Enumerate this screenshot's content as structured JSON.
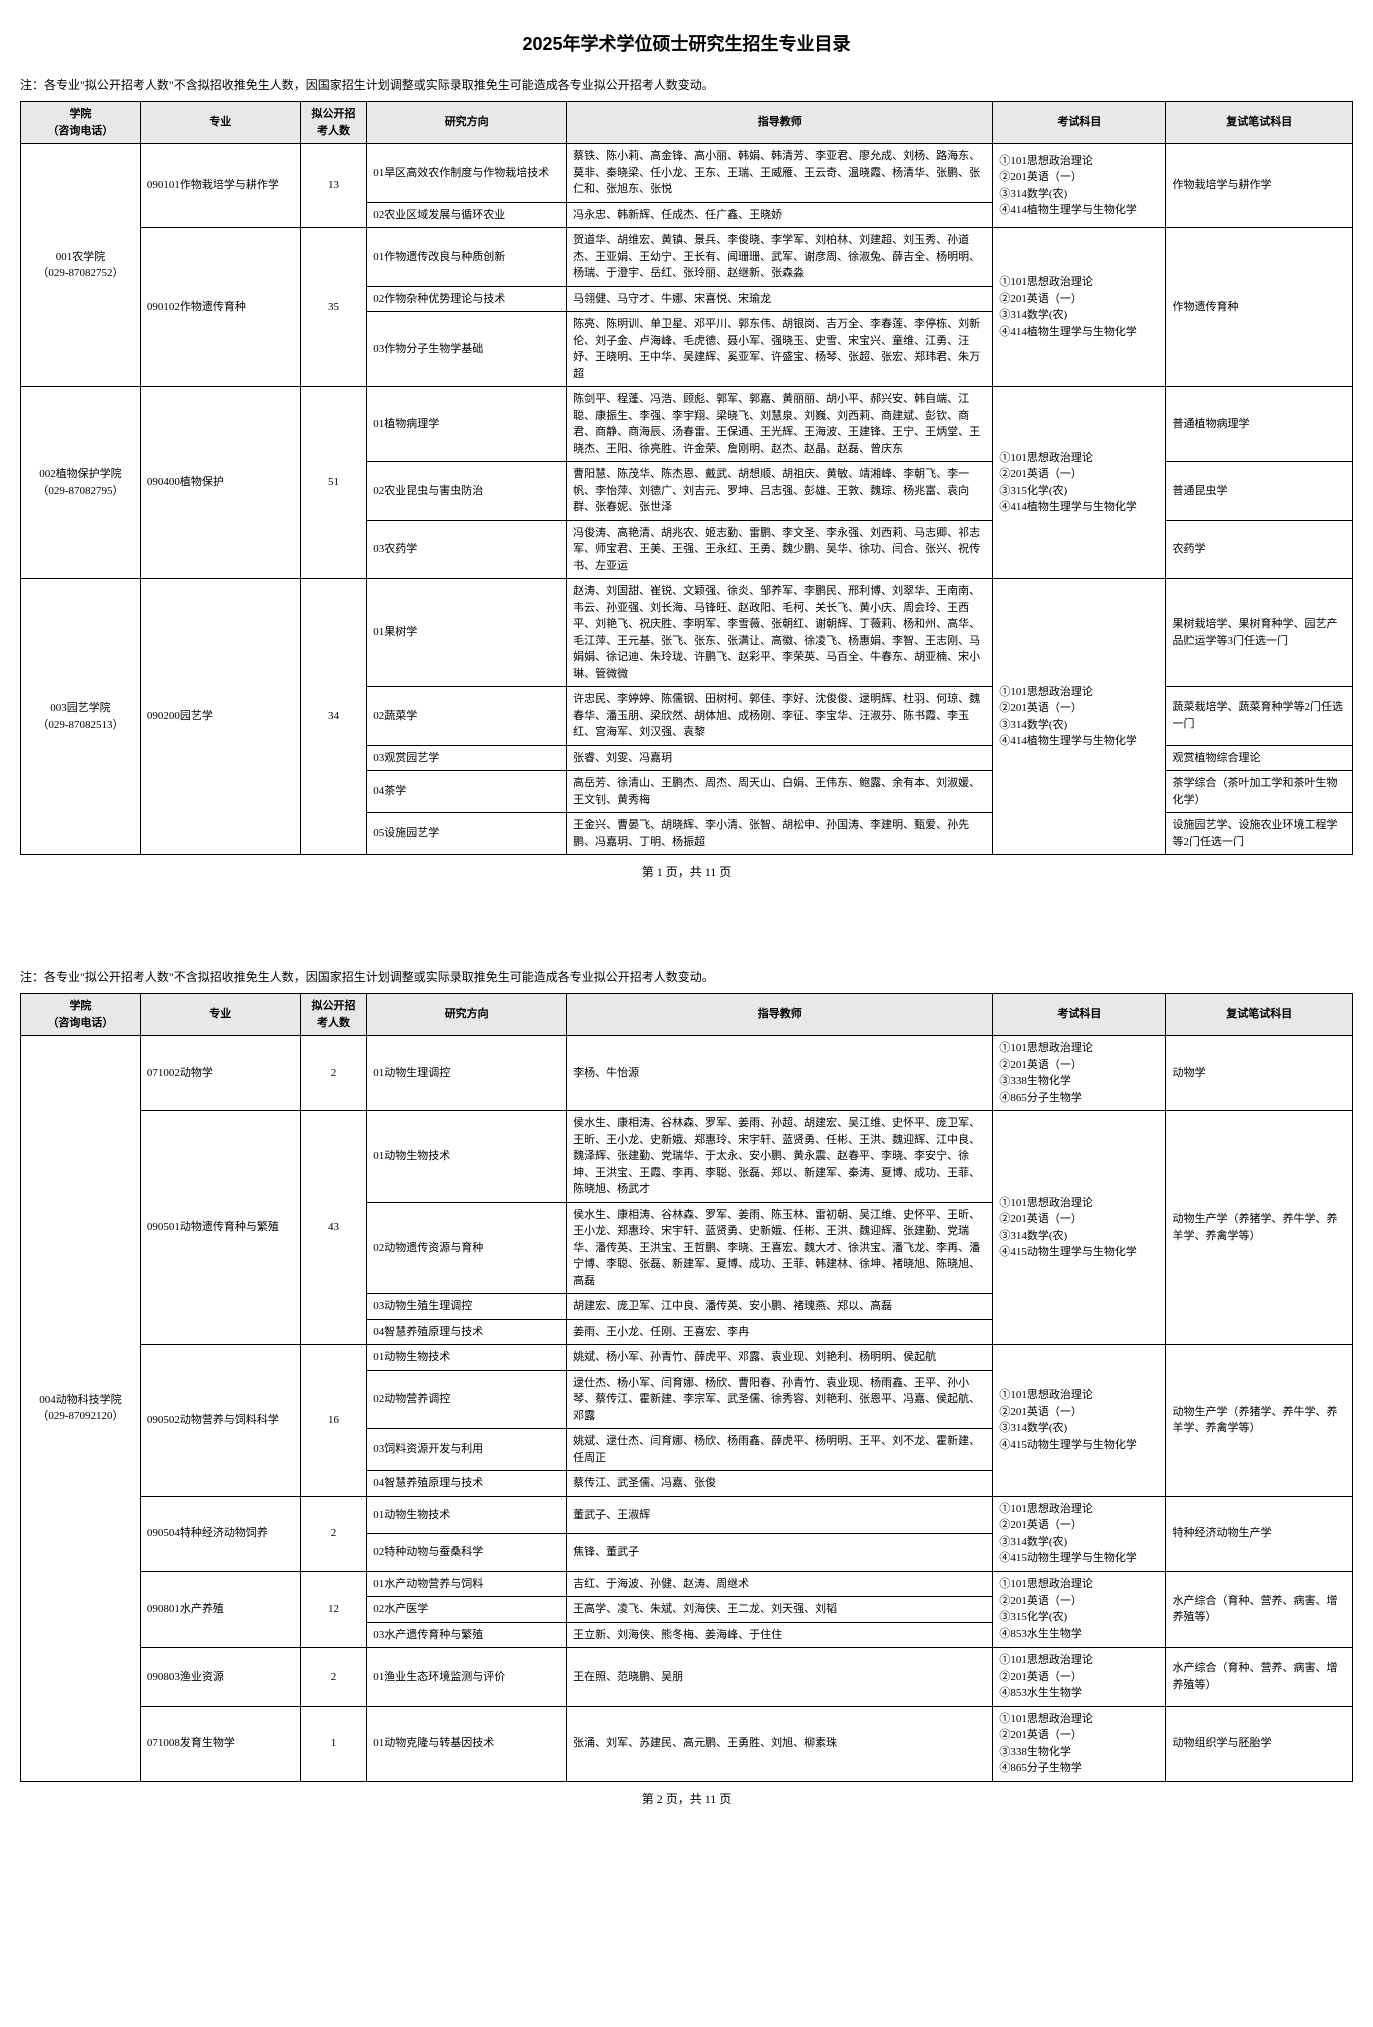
{
  "title": "2025年学术学位硕士研究生招生专业目录",
  "note": "注：各专业\"拟公开招考人数\"不含拟招收推免生人数，因国家招生计划调整或实际录取推免生可能造成各专业拟公开招考人数变动。",
  "headers": {
    "college": "学院\n（咨询电话）",
    "major": "专业",
    "quota": "拟公开招\n考人数",
    "direction": "研究方向",
    "teachers": "指导教师",
    "exam": "考试科目",
    "retest": "复试笔试科目"
  },
  "pager1": "第 1 页，共 11 页",
  "pager2": "第 2 页，共 11 页",
  "p1": {
    "college1": "001农学院\n（029-87082752）",
    "major1": "090101作物栽培学与耕作学",
    "quota1": "13",
    "dir1": "01旱区高效农作制度与作物栽培技术",
    "t1": "蔡铁、陈小莉、高金锋、高小丽、韩娟、韩清芳、李亚君、廖允成、刘杨、路海东、莫非、秦晓梁、任小龙、王东、王瑞、王威雁、王云奇、温晓霞、杨清华、张鹏、张仁和、张旭东、张悦",
    "exam1": "①101思想政治理论\n②201英语（一）\n③314数学(农)\n④414植物生理学与生物化学",
    "ret1": "作物栽培学与耕作学",
    "dir2": "02农业区域发展与循环农业",
    "t2": "冯永忠、韩新辉、任成杰、任广鑫、王晓娇",
    "major2": "090102作物遗传育种",
    "quota2": "35",
    "dir3": "01作物遗传改良与种质创新",
    "t3": "贺道华、胡维宏、黄镇、景兵、李俊晓、李学军、刘柏林、刘建超、刘玉秀、孙道杰、王亚娟、王幼宁、王长有、闻珊珊、武军、谢彦周、徐淑兔、薛吉全、杨明明、杨瑞、于澄宇、岳红、张玲丽、赵继新、张森淼",
    "exam2": "①101思想政治理论\n②201英语（一）\n③314数学(农)\n④414植物生理学与生物化学",
    "ret2": "作物遗传育种",
    "dir4": "02作物杂种优势理论与技术",
    "t4": "马翎健、马守才、牛娜、宋喜悦、宋瑜龙",
    "dir5": "03作物分子生物学基础",
    "t5": "陈亮、陈明训、单卫星、邓平川、郭东伟、胡银岗、吉万全、李春莲、李停栋、刘新伦、刘子金、卢海峰、毛虎德、聂小军、强晓玉、史雪、宋宝兴、童维、江勇、汪妤、王晓明、王中华、吴建辉、奚亚军、许盛宝、杨琴、张超、张宏、郑玮君、朱万超",
    "college2": "002植物保护学院\n（029-87082795）",
    "major3": "090400植物保护",
    "quota3": "51",
    "dir6": "01植物病理学",
    "t6": "陈剑平、程蓬、冯浩、顾彪、郭军、郭嘉、黄丽丽、胡小平、郝兴安、韩自端、江聪、康振生、李强、李宇翔、梁晓飞、刘慧泉、刘巍、刘西莉、商建斌、彭钦、商君、商静、商海辰、汤春雷、王保通、王光辉、王海波、王建锋、王宁、王炳堂、王晓杰、王阳、徐亮胜、许金荣、詹刚明、赵杰、赵晶、赵磊、曾庆东",
    "exam3": "①101思想政治理论\n②201英语（一）\n③315化学(农)\n④414植物生理学与生物化学",
    "ret3": "普通植物病理学",
    "dir7": "02农业昆虫与害虫防治",
    "t7": "曹阳慧、陈茂华、陈杰恩、戴武、胡想顺、胡祖庆、黄敏、靖湘峰、李朝飞、李一帆、李怡萍、刘德广、刘吉元、罗坤、吕志强、彭雄、王敦、魏琮、杨兆富、袁向群、张春妮、张世泽",
    "ret4": "普通昆虫学",
    "dir8": "03农药学",
    "t8": "冯俊涛、高艳清、胡兆农、姬志勤、雷鹏、李文圣、李永强、刘西莉、马志卿、祁志军、师宝君、王美、王强、王永红、王勇、魏少鹏、吴华、徐功、闫合、张兴、祝传书、左亚运",
    "ret5": "农药学",
    "college3": "003园艺学院\n（029-87082513）",
    "major4": "090200园艺学",
    "quota4": "34",
    "dir9": "01果树学",
    "t9": "赵涛、刘国甜、崔锐、文颖强、徐炎、邹养军、李鹏民、邢利博、刘翠华、王南南、韦云、孙亚强、刘长海、马锋旺、赵政阳、毛柯、关长飞、黄小庆、周会玲、王西平、刘艳飞、祝庆胜、李明军、李雪薇、张朝红、谢朝辉、丁薇莉、杨和州、高华、毛江萍、王元基、张飞、张东、张满让、高徽、徐凌飞、杨惠娟、李智、王志刚、马娟娟、徐记迪、朱玲珑、许鹏飞、赵彩平、李荣英、马百全、牛春东、胡亚楠、宋小琳、管微微",
    "exam4": "①101思想政治理论\n②201英语（一）\n③314数学(农)\n④414植物生理学与生物化学",
    "ret6": "果树栽培学、果树育种学、园艺产品贮运学等3门任选一门",
    "dir10": "02蔬菜学",
    "t10": "许忠民、李婷婷、陈儒钢、田树柯、郭佳、李好、沈俊俊、逯明辉、杜羽、何琼、魏春华、潘玉朋、梁欣然、胡体旭、成杨刚、李征、李宝华、汪淑芬、陈书霞、李玉红、宫海军、刘汉强、袁黎",
    "ret7": "蔬菜栽培学、蔬菜育种学等2门任选一门",
    "dir11": "03观赏园艺学",
    "t11": "张睿、刘雯、冯嘉玥",
    "ret8": "观赏植物综合理论",
    "dir12": "04茶学",
    "t12": "高岳芳、徐清山、王鹏杰、周杰、周天山、白娟、王伟东、鲍露、余有本、刘淑媛、王文钊、黄秀梅",
    "ret9": "茶学综合（茶叶加工学和茶叶生物化学）",
    "dir13": "05设施园艺学",
    "t13": "王金兴、曹晏飞、胡晓辉、李小清、张智、胡松申、孙国涛、李建明、甄爱、孙先鹏、冯嘉玥、丁明、杨振超",
    "ret10": "设施园艺学、设施农业环境工程学等2门任选一门"
  },
  "p2": {
    "college1": "004动物科技学院\n（029-87092120）",
    "major1": "071002动物学",
    "quota1": "2",
    "dir1": "01动物生理调控",
    "t1": "李杨、牛怡源",
    "exam1": "①101思想政治理论\n②201英语（一）\n③338生物化学\n④865分子生物学",
    "ret1": "动物学",
    "major2": "090501动物遗传育种与繁殖",
    "quota2": "43",
    "dir2": "01动物生物技术",
    "t2": "侯水生、康相涛、谷林森、罗军、姜雨、孙超、胡建宏、吴江维、史怀平、庞卫军、王昕、王小龙、史新娥、郑惠玲、宋宇轩、蓝贤勇、任彬、王洪、魏迎辉、江中良、魏泽辉、张建勤、党瑞华、于太永、安小鹏、黄永震、赵春平、李晓、李安宁、徐坤、王洪宝、王霞、李再、李聪、张磊、郑以、新建军、秦涛、夏博、成功、王菲、陈晓旭、杨武才",
    "exam2": "①101思想政治理论\n②201英语（一）\n③314数学(农)\n④415动物生理学与生物化学",
    "ret2": "动物生产学（养猪学、养牛学、养羊学、养禽学等）",
    "dir3": "02动物遗传资源与育种",
    "t3": "侯水生、康相涛、谷林森、罗军、姜雨、陈玉林、雷初朝、吴江维、史怀平、王昕、王小龙、郑惠玲、宋宇轩、蓝贤勇、史新娥、任彬、王洪、魏迎辉、张建勤、党瑞华、潘传英、王洪宝、王哲鹏、李晓、王喜宏、魏大才、徐洪宝、潘飞龙、李再、潘宁博、李聪、张磊、新建军、夏博、成功、王菲、韩建林、徐坤、褚晓旭、陈晓旭、高磊",
    "dir4": "03动物生殖生理调控",
    "t4": "胡建宏、庞卫军、江中良、潘传英、安小鹏、褚瑰燕、郑以、高磊",
    "dir5": "04智慧养殖原理与技术",
    "t5": "姜雨、王小龙、任刚、王喜宏、李冉",
    "major3": "090502动物营养与饲料科学",
    "quota3": "16",
    "dir6": "01动物生物技术",
    "t6": "姚斌、杨小军、孙青竹、薛虎平、邓露、袁业现、刘艳利、杨明明、侯起航",
    "exam3": "①101思想政治理论\n②201英语（一）\n③314数学(农)\n④415动物生理学与生物化学",
    "ret3": "动物生产学（养猪学、养牛学、养羊学、养禽学等）",
    "dir7": "02动物营养调控",
    "t7": "逯仕杰、杨小军、闫育娜、杨欣、曹阳春、孙青竹、袁业现、杨雨鑫、王平、孙小琴、蔡传江、霍新建、李宗军、武圣儒、徐秀容、刘艳利、张恩平、冯嘉、侯起航、邓露",
    "dir8": "03饲料资源开发与利用",
    "t8": "姚斌、逯仕杰、闫育娜、杨欣、杨雨鑫、薛虎平、杨明明、王平、刘不龙、霍新建、任周正",
    "dir9": "04智慧养殖原理与技术",
    "t9": "蔡传江、武圣儒、冯嘉、张俊",
    "major4": "090504特种经济动物饲养",
    "quota4": "2",
    "dir10": "01动物生物技术",
    "t10": "董武子、王淑辉",
    "exam4": "①101思想政治理论\n②201英语（一）\n③314数学(农)\n④415动物生理学与生物化学",
    "ret4": "特种经济动物生产学",
    "dir11": "02特种动物与蚕桑科学",
    "t11": "焦锋、董武子",
    "major5": "090801水产养殖",
    "quota5": "12",
    "dir12": "01水产动物营养与饲料",
    "t12": "吉红、于海波、孙健、赵涛、周继术",
    "exam5": "①101思想政治理论\n②201英语（一）\n③315化学(农)\n④853水生生物学",
    "ret5": "水产综合（育种、营养、病害、增养殖等）",
    "dir13": "02水产医学",
    "t13": "王高学、凌飞、朱斌、刘海侠、王二龙、刘天强、刘韬",
    "dir14": "03水产遗传育种与繁殖",
    "t14": "王立新、刘海侠、熊冬梅、姜海峰、于住住",
    "major6": "090803渔业资源",
    "quota6": "2",
    "dir15": "01渔业生态环境监测与评价",
    "t15": "王在照、范晓鹏、吴朋",
    "exam6": "①101思想政治理论\n②201英语（一）\n④853水生生物学",
    "ret6": "水产综合（育种、营养、病害、增养殖等）",
    "major7": "071008发育生物学",
    "quota7": "1",
    "dir16": "01动物克隆与转基因技术",
    "t16": "张涌、刘军、苏建民、高元鹏、王勇胜、刘旭、柳素珠",
    "exam7": "①101思想政治理论\n②201英语（一）\n③338生物化学\n④865分子生物学",
    "ret7": "动物组织学与胚胎学"
  }
}
